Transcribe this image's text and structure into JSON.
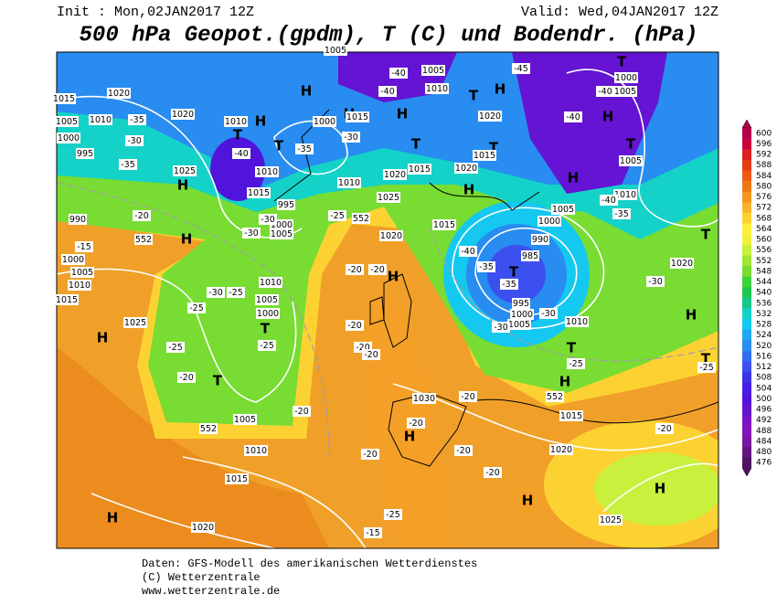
{
  "header": {
    "init": "Init : Mon,02JAN2017 12Z",
    "valid": "Valid: Wed,04JAN2017 12Z",
    "title": "500 hPa Geopot.(gpdm), T (C) und Bodendr. (hPa)"
  },
  "colorbar": {
    "labels": [
      600,
      596,
      592,
      588,
      584,
      580,
      576,
      572,
      568,
      564,
      560,
      556,
      552,
      548,
      544,
      540,
      536,
      532,
      528,
      524,
      520,
      516,
      512,
      508,
      504,
      500,
      496,
      492,
      488,
      484,
      480,
      476
    ],
    "colors": [
      "#b4004b",
      "#c8003c",
      "#dc1e1e",
      "#e63c14",
      "#ee5a14",
      "#f07814",
      "#f4961e",
      "#f8b428",
      "#fcd232",
      "#fff03c",
      "#f0f03c",
      "#c8f03c",
      "#a0e632",
      "#78dc32",
      "#3cd23c",
      "#1ec850",
      "#14c88c",
      "#14d2c8",
      "#14c8f0",
      "#1eaaf0",
      "#288cf0",
      "#326ef0",
      "#3c50f0",
      "#3c32e6",
      "#461ee6",
      "#5014dc",
      "#6414d2",
      "#7814c8",
      "#8214be",
      "#7814a0",
      "#641482",
      "#501464"
    ]
  },
  "map_labels": [
    "H",
    "H",
    "H",
    "H",
    "H",
    "H",
    "H",
    "H",
    "H",
    "H",
    "H",
    "H",
    "H",
    "H",
    "H",
    "H",
    "H",
    "H",
    "T",
    "T",
    "T",
    "T",
    "T",
    "T",
    "T",
    "T",
    "T",
    "T",
    "T",
    "T",
    "T",
    "1020",
    "1010",
    "1005",
    "1000",
    "995",
    "1015",
    "1020",
    "1010",
    "1025",
    "1010",
    "1015",
    "1005",
    "1000",
    "995",
    "1005",
    "1000",
    "1015",
    "1010",
    "1020",
    "1015",
    "1025",
    "1020",
    "1015",
    "1005",
    "1010",
    "1020",
    "1015",
    "1020",
    "1000",
    "1005",
    "1005",
    "1010",
    "1005",
    "1000",
    "990",
    "985",
    "995",
    "1000",
    "1005",
    "1010",
    "1015",
    "1020",
    "1020",
    "1030",
    "1005",
    "1010",
    "1015",
    "1020",
    "1025",
    "1010",
    "1005",
    "1000",
    "1000",
    "1005",
    "1010",
    "1015",
    "1025",
    "990",
    "-35",
    "-30",
    "-35",
    "-35",
    "-40",
    "-30",
    "-40",
    "-40",
    "-45",
    "-40",
    "-40",
    "-40",
    "-35",
    "-40",
    "-35",
    "-35",
    "-30",
    "-30",
    "-30",
    "-25",
    "-25",
    "-20",
    "-20",
    "-20",
    "-20",
    "-20",
    "-20",
    "-20",
    "-20",
    "-25",
    "-25",
    "-25",
    "-25",
    "-30",
    "-20",
    "-20",
    "-20",
    "-20",
    "-20",
    "-20",
    "-15",
    "-25",
    "-15",
    "-25",
    "-30",
    "-30",
    "552",
    "552",
    "552",
    "552"
  ],
  "footer": {
    "line1": "Daten: GFS-Modell des amerikanischen Wetterdienstes",
    "line2": "(C) Wetterzentrale",
    "line3": "www.wetterzentrale.de"
  }
}
